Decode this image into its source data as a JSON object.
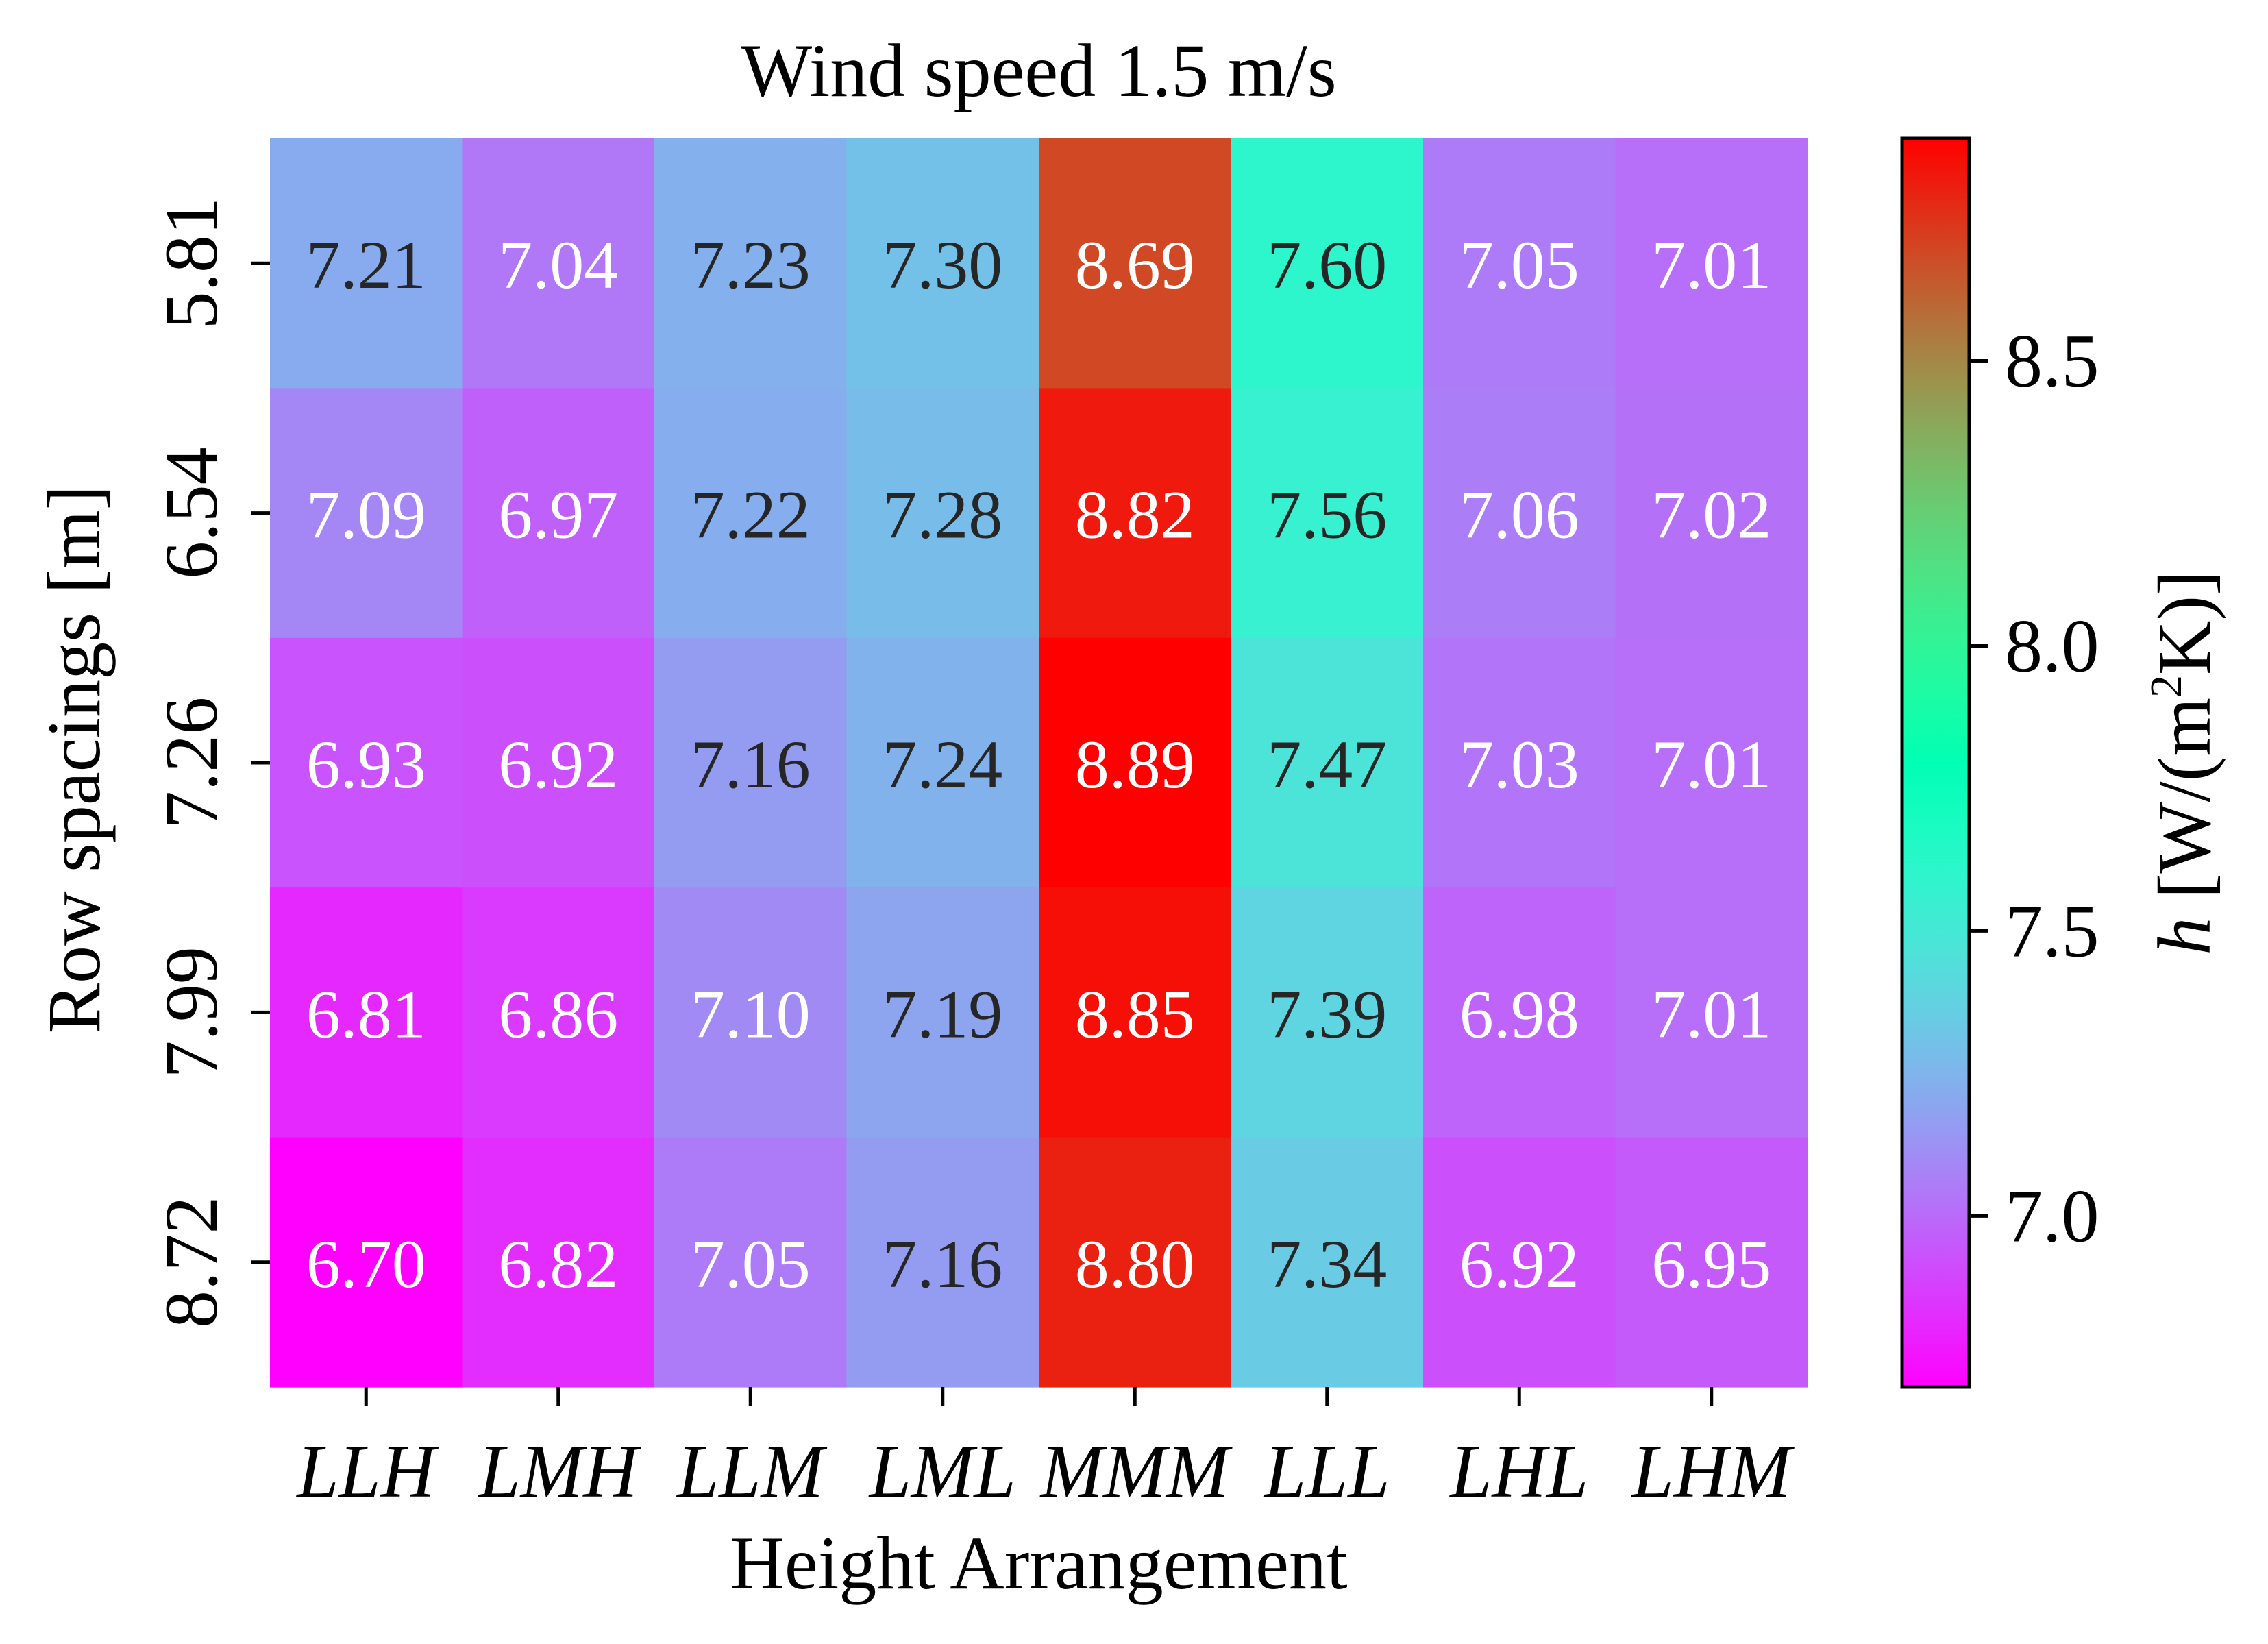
{
  "chart_data": {
    "type": "heatmap",
    "title": "Wind speed 1.5 m/s",
    "xlabel": "Height Arrangement",
    "ylabel": "Row spacings [m]",
    "x_categories": [
      "LLH",
      "LMH",
      "LLM",
      "LML",
      "MMM",
      "LLL",
      "LHL",
      "LHM"
    ],
    "y_categories": [
      "5.81",
      "6.54",
      "7.26",
      "7.99",
      "8.72"
    ],
    "values": [
      [
        7.21,
        7.04,
        7.23,
        7.3,
        8.69,
        7.6,
        7.05,
        7.01
      ],
      [
        7.09,
        6.97,
        7.22,
        7.28,
        8.82,
        7.56,
        7.06,
        7.02
      ],
      [
        6.93,
        6.92,
        7.16,
        7.24,
        8.89,
        7.47,
        7.03,
        7.01
      ],
      [
        6.81,
        6.86,
        7.1,
        7.19,
        8.85,
        7.39,
        6.98,
        7.01
      ],
      [
        6.7,
        6.82,
        7.05,
        7.16,
        8.8,
        7.34,
        6.92,
        6.95
      ]
    ],
    "value_labels": [
      [
        "7.21",
        "7.04",
        "7.23",
        "7.30",
        "8.69",
        "7.60",
        "7.05",
        "7.01"
      ],
      [
        "7.09",
        "6.97",
        "7.22",
        "7.28",
        "8.82",
        "7.56",
        "7.06",
        "7.02"
      ],
      [
        "6.93",
        "6.92",
        "7.16",
        "7.24",
        "8.89",
        "7.47",
        "7.03",
        "7.01"
      ],
      [
        "6.81",
        "6.86",
        "7.10",
        "7.19",
        "8.85",
        "7.39",
        "6.98",
        "7.01"
      ],
      [
        "6.70",
        "6.82",
        "7.05",
        "7.16",
        "8.80",
        "7.34",
        "6.92",
        "6.95"
      ]
    ],
    "colorbar": {
      "label_symbol": "h",
      "label_unit_pre": "[W/(m",
      "label_unit_sup": "2",
      "label_unit_post": "K)]",
      "range": [
        6.7,
        8.89
      ],
      "ticks": [
        7.0,
        7.5,
        8.0,
        8.5
      ],
      "tick_labels": [
        "7.0",
        "7.5",
        "8.0",
        "8.5"
      ],
      "colormap": "rainbow"
    },
    "cell_text_colors": {
      "light": "#ffffff",
      "dark": "#262626"
    },
    "grid": false,
    "legend": "none"
  }
}
